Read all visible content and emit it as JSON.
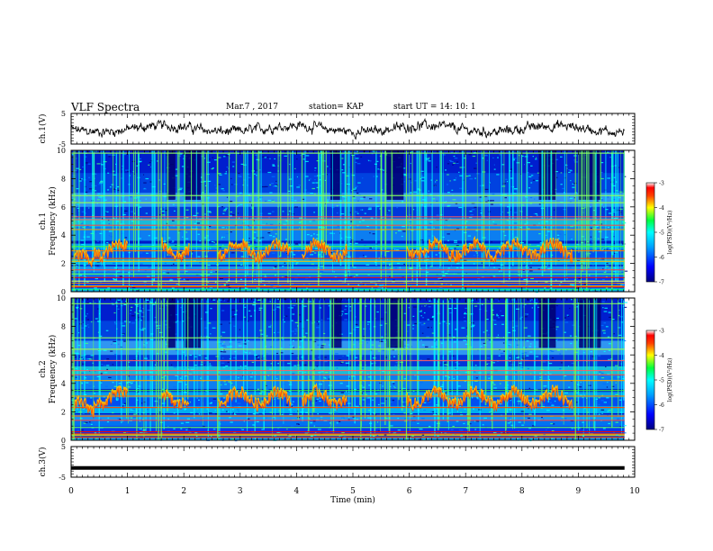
{
  "header": {
    "title": "VLF Spectra",
    "date": "Mar.7 , 2017",
    "station": "station= KAP",
    "start": "start UT =  14: 10: 1"
  },
  "colors": {
    "colormap": [
      "#000080",
      "#0000ff",
      "#0080ff",
      "#00ffff",
      "#00ff80",
      "#ffff00",
      "#ff8000",
      "#ff0000",
      "#ffffff"
    ]
  },
  "chart_data": [
    {
      "id": "ch1-waveform",
      "type": "line",
      "ylabel": "ch.1(V)",
      "ylim": [
        -5,
        5
      ],
      "yticks": [
        "5",
        "-5"
      ],
      "xlim": [
        0,
        10
      ],
      "note_visible": "noisy waveform, mean ~0 V"
    },
    {
      "id": "ch1-spectrogram",
      "type": "heatmap",
      "ylabel": "ch.1\nFrequency (kHz)",
      "ylim": [
        0,
        10
      ],
      "yticks": [
        "0",
        "2",
        "4",
        "6",
        "8",
        "10"
      ],
      "xlim": [
        0,
        10
      ],
      "colorbar": {
        "label": "log(PSD)(V²/Hz)",
        "range": [
          -7,
          -3
        ],
        "ticks": [
          "-3",
          "-4",
          "-5",
          "-6",
          "-7"
        ]
      },
      "data_end_min": 9.82
    },
    {
      "id": "ch2-spectrogram",
      "type": "heatmap",
      "ylabel": "ch.2\nFrequency (kHz)",
      "ylim": [
        0,
        10
      ],
      "yticks": [
        "0",
        "2",
        "4",
        "6",
        "8",
        "10"
      ],
      "xlim": [
        0,
        10
      ],
      "colorbar": {
        "label": "log(PSD)(V²/Hz)",
        "range": [
          -7,
          -3
        ],
        "ticks": [
          "-3",
          "-4",
          "-5",
          "-6",
          "-7"
        ]
      },
      "data_end_min": 9.82
    },
    {
      "id": "ch3-waveform",
      "type": "line",
      "ylabel": "ch.3(V)",
      "ylim": [
        -5,
        5
      ],
      "yticks": [
        "5",
        "-5"
      ],
      "xlim": [
        0,
        10
      ],
      "constant_value": -2
    }
  ],
  "xaxis": {
    "label": "Time (min)",
    "ticks": [
      "0",
      "1",
      "2",
      "3",
      "4",
      "5",
      "6",
      "7",
      "8",
      "9",
      "10"
    ]
  }
}
